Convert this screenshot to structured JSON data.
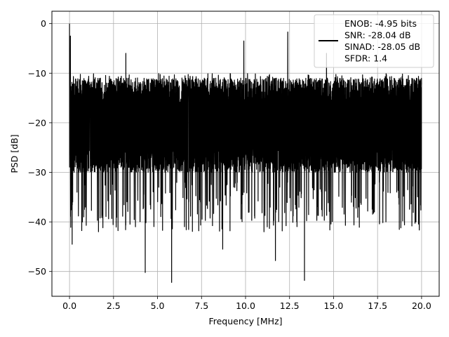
{
  "chart_data": {
    "type": "line",
    "xlabel": "Frequency [MHz]",
    "ylabel": "PSD [dB]",
    "xlim": [
      -1.0,
      21.0
    ],
    "ylim": [
      -55,
      2.5
    ],
    "x_ticks": [
      0.0,
      2.5,
      5.0,
      7.5,
      10.0,
      12.5,
      15.0,
      17.5,
      20.0
    ],
    "x_tick_labels": [
      "0.0",
      "2.5",
      "5.0",
      "7.5",
      "10.0",
      "12.5",
      "15.0",
      "17.5",
      "20.0"
    ],
    "y_ticks": [
      0,
      -10,
      -20,
      -30,
      -40,
      -50
    ],
    "y_tick_labels": [
      "0",
      "−10",
      "−20",
      "−30",
      "−40",
      "−50"
    ],
    "grid": true,
    "legend_position": "top-right",
    "legend": {
      "entries": [
        "ENOB: -4.95 bits",
        "SNR: -28.04 dB",
        "SINAD: -28.05 dB",
        "SFDR: 1.4"
      ]
    },
    "series": [
      {
        "color": "#000000",
        "x_range": [
          0,
          20
        ],
        "peak_db": 0.0,
        "typical_upper_db": -11,
        "typical_lower_db": -30,
        "notable_peaks": [
          {
            "x": 0.0,
            "y": 0.0
          },
          {
            "x": 0.05,
            "y": -2.5
          },
          {
            "x": 9.9,
            "y": -3.5
          },
          {
            "x": 12.4,
            "y": -1.7
          },
          {
            "x": 3.2,
            "y": -6.0
          },
          {
            "x": 14.6,
            "y": -6.0
          }
        ],
        "notable_dips": [
          {
            "x": 0.15,
            "y": -44.5
          },
          {
            "x": 4.3,
            "y": -50.2
          },
          {
            "x": 5.8,
            "y": -52.2
          },
          {
            "x": 11.7,
            "y": -47.8
          },
          {
            "x": 13.35,
            "y": -51.8
          },
          {
            "x": 8.7,
            "y": -45.5
          }
        ]
      }
    ]
  }
}
